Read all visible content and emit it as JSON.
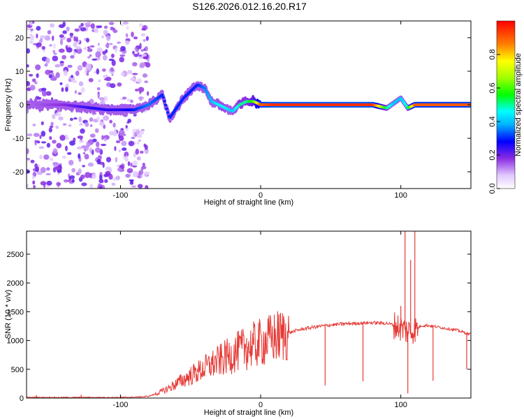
{
  "title": "S126.2026.012.16.20.R17",
  "colors": {
    "snr_line": "#e53935",
    "colorbar_top": "#ff0000",
    "colorbar_bottom": "#ffffff"
  },
  "chart_data": [
    {
      "type": "heatmap",
      "name": "spectrogram",
      "xlabel": "Height of straight line (km)",
      "ylabel": "Frequency (Hz)",
      "xlim": [
        -167,
        150
      ],
      "ylim": [
        -25,
        25
      ],
      "xticks": [
        -100,
        0,
        100
      ],
      "yticks": [
        -20,
        -10,
        0,
        10,
        20
      ],
      "colorbar": {
        "label": "Normalized spectral amplitude",
        "ticks": [
          "0.0",
          "0.2",
          "0.4",
          "0.6",
          "0.8"
        ],
        "range": [
          0.0,
          1.0
        ]
      },
      "ridge": {
        "x": [
          -160,
          -140,
          -130,
          -120,
          -110,
          -100,
          -90,
          -80,
          -70,
          -65,
          -60,
          -55,
          -50,
          -45,
          -40,
          -35,
          -30,
          -25,
          -20,
          -15,
          -10,
          -5,
          0,
          10,
          20,
          40,
          60,
          80,
          90,
          95,
          100,
          105,
          110,
          130,
          150
        ],
        "y": [
          0,
          0,
          -0.5,
          -1,
          -1.5,
          -1.5,
          -1.5,
          0,
          3,
          -4,
          -1,
          2,
          4,
          6,
          5,
          1,
          0,
          -1,
          -2,
          0,
          1,
          1,
          0,
          0,
          0,
          0,
          0,
          0,
          -1,
          0.5,
          2,
          -1,
          0,
          0,
          0
        ],
        "amplitude": [
          0.15,
          0.18,
          0.22,
          0.25,
          0.25,
          0.25,
          0.3,
          0.35,
          0.3,
          0.3,
          0.3,
          0.3,
          0.3,
          0.3,
          0.35,
          0.4,
          0.45,
          0.45,
          0.4,
          0.5,
          0.5,
          0.6,
          0.9,
          0.95,
          0.95,
          0.95,
          0.95,
          0.95,
          0.5,
          0.4,
          0.4,
          0.5,
          0.9,
          0.9,
          0.9
        ]
      }
    },
    {
      "type": "line",
      "name": "snr",
      "xlabel": "Height of straight line (km)",
      "ylabel": "SNR (10 * v/v)",
      "xlim": [
        -167,
        150
      ],
      "ylim": [
        0,
        2900
      ],
      "xticks": [
        -100,
        0,
        100
      ],
      "yticks": [
        0,
        500,
        1000,
        1500,
        2000,
        2500
      ],
      "x": [
        -167,
        -160,
        -150,
        -140,
        -130,
        -120,
        -110,
        -100,
        -90,
        -80,
        -75,
        -70,
        -65,
        -60,
        -55,
        -50,
        -45,
        -40,
        -35,
        -30,
        -25,
        -20,
        -15,
        -10,
        -5,
        0,
        5,
        10,
        15,
        20,
        25,
        30,
        40,
        50,
        60,
        70,
        80,
        90,
        95,
        100,
        105,
        110,
        115,
        120,
        130,
        140,
        150
      ],
      "y": [
        10,
        10,
        10,
        10,
        10,
        10,
        10,
        10,
        15,
        30,
        70,
        120,
        180,
        250,
        320,
        390,
        450,
        520,
        580,
        640,
        700,
        760,
        820,
        870,
        920,
        960,
        1000,
        1050,
        1090,
        1130,
        1170,
        1200,
        1240,
        1270,
        1290,
        1300,
        1310,
        1300,
        1270,
        1220,
        1160,
        1190,
        1260,
        1260,
        1220,
        1180,
        1100
      ],
      "spikes": [
        {
          "x": -160,
          "y": 50
        },
        {
          "x": -128,
          "y": 60
        },
        {
          "x": -60,
          "y": 240
        },
        {
          "x": -45,
          "y": 510
        },
        {
          "x": -35,
          "y": 700
        },
        {
          "x": -25,
          "y": 900
        },
        {
          "x": -18,
          "y": 1000
        },
        {
          "x": -10,
          "y": 1040
        },
        {
          "x": -5,
          "y": 1050
        },
        {
          "x": 5,
          "y": 1020
        },
        {
          "x": 15,
          "y": 1060
        },
        {
          "x": 46,
          "y": 220
        },
        {
          "x": 73,
          "y": 290
        },
        {
          "x": 96,
          "y": 1200
        },
        {
          "x": 100,
          "y": 1600
        },
        {
          "x": 103,
          "y": 2900
        },
        {
          "x": 105,
          "y": 80
        },
        {
          "x": 107,
          "y": 2400
        },
        {
          "x": 110,
          "y": 2900
        },
        {
          "x": 123,
          "y": 300
        },
        {
          "x": 147,
          "y": 500
        }
      ]
    }
  ]
}
